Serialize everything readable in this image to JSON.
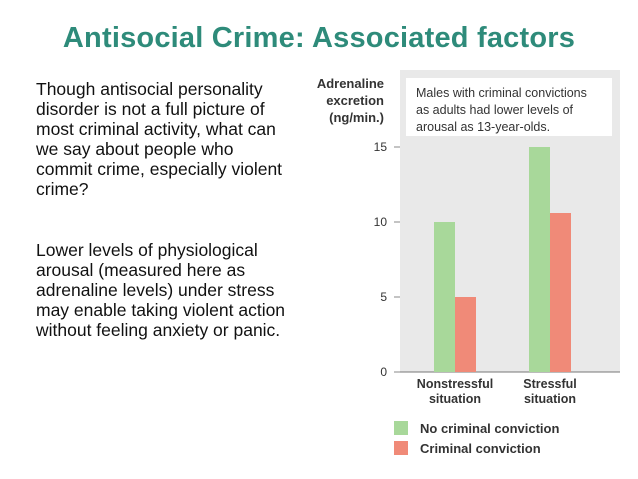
{
  "slide": {
    "title": "Antisocial Crime: Associated factors",
    "paragraph_1": "Though antisocial personality disorder is not a full picture of most criminal activity, what can we say about people who commit crime, especially violent crime?",
    "paragraph_2": "Lower levels of physiological arousal (measured here as adrenaline levels) under stress may enable taking violent action without feeling anxiety or panic."
  },
  "chart_data": {
    "type": "bar",
    "title": "",
    "annotation": "Males with criminal convictions as adults had lower levels of arousal as 13-year-olds.",
    "ylabel": "Adrenaline excretion (ng/min.)",
    "xlabel": "",
    "categories": [
      "Nonstressful situation",
      "Stressful situation"
    ],
    "series": [
      {
        "name": "No criminal conviction",
        "color": "#a8d89a",
        "values": [
          10,
          15
        ]
      },
      {
        "name": "Criminal conviction",
        "color": "#f08a78",
        "values": [
          5,
          10.6
        ]
      }
    ],
    "ylim": [
      0,
      15
    ],
    "yticks": [
      0,
      5,
      10,
      15
    ],
    "grid": false,
    "legend_position": "bottom-left",
    "colors": {
      "panel": "#e9e9e9",
      "annotation_box": "#ffffff"
    }
  }
}
